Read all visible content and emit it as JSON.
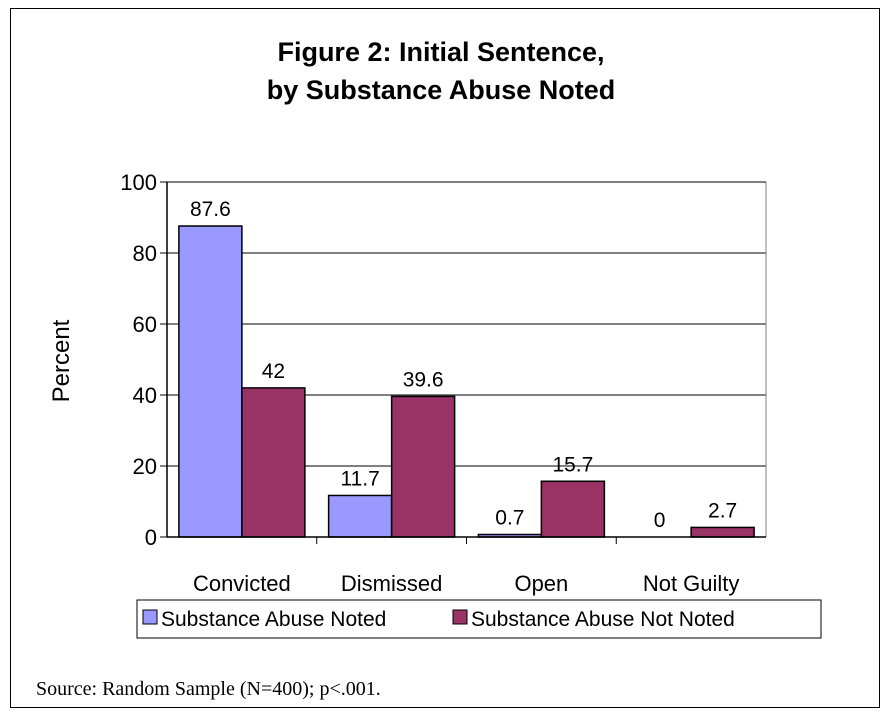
{
  "chart_data": {
    "type": "bar",
    "title": [
      "Figure 2: Initial Sentence,",
      "by Substance Abuse Noted"
    ],
    "ylabel": "Percent",
    "xlabel": "",
    "ylim": [
      0,
      100
    ],
    "yticks": [
      0,
      20,
      40,
      60,
      80,
      100
    ],
    "grid": true,
    "legend_position": "bottom",
    "categories": [
      "Convicted",
      "Dismissed",
      "Open",
      "Not Guilty"
    ],
    "series": [
      {
        "name": "Substance Abuse Noted",
        "values": [
          87.6,
          11.7,
          0.7,
          0
        ],
        "labels": [
          "87.6",
          "11.7",
          "0.7",
          "0"
        ],
        "color": "#9999ff"
      },
      {
        "name": "Substance Abuse Not Noted",
        "values": [
          42,
          39.6,
          15.7,
          2.7
        ],
        "labels": [
          "42",
          "39.6",
          "15.7",
          "2.7"
        ],
        "color": "#993366"
      }
    ]
  },
  "source_note": "Source: Random Sample (N=400); p<.001."
}
